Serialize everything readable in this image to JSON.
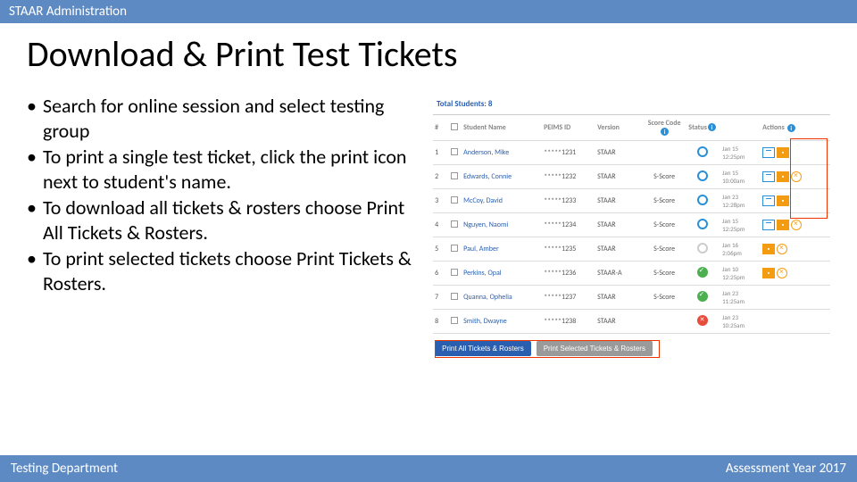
{
  "topBar": "STAAR Administration",
  "title": "Download & Print Test Tickets",
  "bullets": [
    "Search for online session and select testing group",
    "To print a single test ticket, click the print icon next to student's name.",
    "To download all tickets & rosters choose Print All Tickets & Rosters.",
    "To print selected tickets choose Print Tickets & Rosters."
  ],
  "panel": {
    "totalLabel": "Total Students:",
    "totalValue": "8",
    "headers": {
      "num": "#",
      "name": "Student Name",
      "peims": "PEIMS ID",
      "version": "Version",
      "score": "Score Code",
      "status": "Status",
      "actions": "Actions"
    },
    "rows": [
      {
        "n": "1",
        "name": "Anderson, Mike",
        "peims": "*****1231",
        "ver": "STAAR",
        "score": "",
        "status": "blue",
        "date": "Jan 15",
        "time": "12:25pm",
        "actions": [
          "print",
          "orange"
        ]
      },
      {
        "n": "2",
        "name": "Edwards, Connie",
        "peims": "*****1232",
        "ver": "STAAR",
        "score": "S-Score",
        "status": "blue",
        "date": "Jan 15",
        "time": "10:00am",
        "actions": [
          "print",
          "orange",
          "del"
        ]
      },
      {
        "n": "3",
        "name": "McCoy, David",
        "peims": "*****1233",
        "ver": "STAAR",
        "score": "S-Score",
        "status": "blue",
        "date": "Jan 23",
        "time": "12:28pm",
        "actions": [
          "print",
          "orange"
        ]
      },
      {
        "n": "4",
        "name": "Nguyen, Naomi",
        "peims": "*****1234",
        "ver": "STAAR",
        "score": "S-Score",
        "status": "blue",
        "date": "Jan 15",
        "time": "12:25pm",
        "actions": [
          "print",
          "orange",
          "del"
        ]
      },
      {
        "n": "5",
        "name": "Paul, Amber",
        "peims": "*****1235",
        "ver": "STAAR",
        "score": "S-Score",
        "status": "gray",
        "date": "Jan 16",
        "time": "2:06pm",
        "actions": [
          "orange",
          "del"
        ]
      },
      {
        "n": "6",
        "name": "Perkins, Opal",
        "peims": "*****1236",
        "ver": "STAAR-A",
        "score": "S-Score",
        "status": "green",
        "date": "Jan 10",
        "time": "12:25pm",
        "actions": [
          "orange",
          "del"
        ]
      },
      {
        "n": "7",
        "name": "Quanna, Ophelia",
        "peims": "*****1237",
        "ver": "STAAR",
        "score": "S-Score",
        "status": "green",
        "date": "Jan 23",
        "time": "11:25am",
        "actions": []
      },
      {
        "n": "8",
        "name": "Smith, Dwayne",
        "peims": "*****1238",
        "ver": "STAAR",
        "score": "",
        "status": "red",
        "date": "Jan 23",
        "time": "10:25am",
        "actions": []
      }
    ],
    "buttons": {
      "all": "Print All Tickets & Rosters",
      "sel": "Print Selected Tickets & Rosters"
    }
  },
  "footer": {
    "left": "Testing Department",
    "right": "Assessment Year 2017"
  }
}
